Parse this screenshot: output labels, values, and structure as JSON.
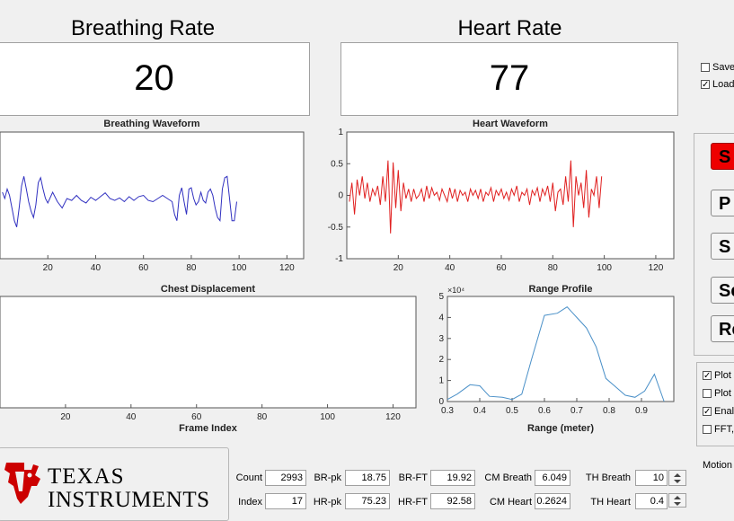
{
  "breathing": {
    "title": "Breathing Rate",
    "value": "20"
  },
  "heart": {
    "title": "Heart Rate",
    "value": "77"
  },
  "save_load": [
    {
      "label": "Save",
      "checked": false
    },
    {
      "label": "Load",
      "checked": true
    }
  ],
  "buttons": [
    "S",
    "P",
    "S",
    "Se",
    "Re"
  ],
  "plot_options": [
    {
      "label": "Plot",
      "checked": true
    },
    {
      "label": "Plot",
      "checked": false
    },
    {
      "label": "Enal",
      "checked": true
    },
    {
      "label": "FFT,",
      "checked": false
    }
  ],
  "motion_label": "Motion",
  "logo": {
    "line1": "TEXAS",
    "line2": "INSTRUMENTS"
  },
  "stats": {
    "count": {
      "label": "Count",
      "value": "2993"
    },
    "index": {
      "label": "Index",
      "value": "17"
    },
    "br_pk": {
      "label": "BR-pk",
      "value": "18.75"
    },
    "hr_pk": {
      "label": "HR-pk",
      "value": "75.23"
    },
    "br_ft": {
      "label": "BR-FT",
      "value": "19.92"
    },
    "hr_ft": {
      "label": "HR-FT",
      "value": "92.58"
    },
    "cm_breath": {
      "label": "CM Breath",
      "value": "6.049"
    },
    "cm_heart": {
      "label": "CM  Heart",
      "value": "0.2624"
    },
    "th_breath": {
      "label": "TH Breath",
      "value": "10"
    },
    "th_heart": {
      "label": "TH  Heart",
      "value": "0.4"
    }
  },
  "chart_data": [
    {
      "type": "line",
      "title": "Breathing Waveform",
      "xticks": [
        "20",
        "40",
        "60",
        "80",
        "100",
        "120"
      ],
      "xlim": [
        0,
        127
      ],
      "ylim": [
        -1,
        1
      ],
      "color": "#3030c0",
      "x": [
        1,
        2,
        3,
        4,
        5,
        6,
        7,
        8,
        9,
        10,
        11,
        12,
        13,
        14,
        15,
        16,
        17,
        18,
        19,
        20,
        22,
        24,
        26,
        28,
        30,
        32,
        34,
        36,
        38,
        40,
        42,
        44,
        46,
        48,
        50,
        52,
        54,
        56,
        58,
        60,
        62,
        64,
        66,
        68,
        70,
        72,
        73,
        74,
        75,
        76,
        77,
        78,
        79,
        80,
        81,
        82,
        83,
        84,
        85,
        86,
        87,
        88,
        89,
        90,
        91,
        92,
        93,
        94,
        95,
        96,
        97,
        98,
        99
      ],
      "y": [
        0.05,
        -0.05,
        0.1,
        0.0,
        -0.2,
        -0.4,
        -0.5,
        -0.2,
        0.15,
        0.3,
        0.1,
        -0.1,
        -0.25,
        -0.35,
        -0.15,
        0.2,
        0.28,
        0.1,
        -0.05,
        -0.12,
        0.05,
        -0.1,
        -0.2,
        -0.05,
        -0.08,
        0.0,
        -0.08,
        -0.12,
        -0.03,
        -0.08,
        -0.02,
        0.04,
        -0.05,
        -0.08,
        -0.04,
        -0.1,
        -0.02,
        -0.08,
        -0.02,
        0.0,
        -0.08,
        -0.1,
        -0.05,
        0.0,
        -0.05,
        -0.1,
        -0.3,
        -0.4,
        0.0,
        0.12,
        -0.1,
        -0.3,
        0.1,
        0.12,
        -0.05,
        -0.15,
        -0.1,
        0.05,
        -0.08,
        -0.12,
        0.05,
        0.1,
        0.0,
        -0.2,
        -0.35,
        -0.4,
        0.1,
        0.28,
        0.3,
        -0.05,
        -0.4,
        -0.4,
        -0.1
      ]
    },
    {
      "type": "line",
      "title": "Heart Waveform",
      "xticks": [
        "20",
        "40",
        "60",
        "80",
        "100",
        "120"
      ],
      "yticks": [
        "1",
        "0.5",
        "0",
        "-0.5",
        "-1"
      ],
      "xlim": [
        0,
        127
      ],
      "ylim": [
        -1,
        1
      ],
      "color": "#e02020",
      "x": [
        1,
        2,
        3,
        4,
        5,
        6,
        7,
        8,
        9,
        10,
        11,
        12,
        13,
        14,
        15,
        16,
        17,
        18,
        19,
        20,
        21,
        22,
        23,
        24,
        25,
        26,
        27,
        28,
        29,
        30,
        31,
        32,
        33,
        34,
        35,
        36,
        37,
        38,
        39,
        40,
        41,
        42,
        43,
        44,
        45,
        46,
        47,
        48,
        49,
        50,
        51,
        52,
        53,
        54,
        55,
        56,
        57,
        58,
        59,
        60,
        61,
        62,
        63,
        64,
        65,
        66,
        67,
        68,
        69,
        70,
        71,
        72,
        73,
        74,
        75,
        76,
        77,
        78,
        79,
        80,
        81,
        82,
        83,
        84,
        85,
        86,
        87,
        88,
        89,
        90,
        91,
        92,
        93,
        94,
        95,
        96,
        97,
        98,
        99
      ],
      "y": [
        -0.1,
        0.2,
        -0.3,
        0.25,
        0.0,
        0.3,
        -0.05,
        0.2,
        -0.1,
        0.1,
        0.0,
        0.15,
        -0.15,
        0.3,
        -0.1,
        0.55,
        -0.6,
        0.52,
        -0.2,
        0.4,
        -0.25,
        0.2,
        -0.05,
        0.1,
        -0.1,
        0.1,
        -0.05,
        0.0,
        0.1,
        -0.1,
        0.15,
        -0.05,
        0.12,
        0.0,
        0.05,
        -0.08,
        0.1,
        0.0,
        -0.1,
        0.12,
        -0.05,
        0.1,
        -0.1,
        0.08,
        0.0,
        0.05,
        -0.1,
        0.1,
        0.0,
        0.08,
        -0.05,
        0.1,
        -0.1,
        0.05,
        0.0,
        0.12,
        -0.1,
        0.08,
        0.0,
        0.1,
        -0.05,
        0.05,
        -0.08,
        0.1,
        0.0,
        0.15,
        -0.1,
        0.05,
        0.0,
        0.1,
        -0.15,
        0.08,
        0.0,
        0.12,
        -0.1,
        0.1,
        0.0,
        0.15,
        -0.1,
        0.2,
        -0.25,
        0.05,
        0.1,
        -0.15,
        0.3,
        -0.1,
        0.55,
        -0.5,
        0.3,
        0.0,
        0.2,
        -0.2,
        0.4,
        -0.35,
        0.1,
        0.0,
        0.3,
        -0.2,
        0.3
      ]
    },
    {
      "type": "line",
      "title": "Chest Displacement",
      "xlabel": "Frame Index",
      "xticks": [
        "20",
        "40",
        "60",
        "80",
        "100",
        "120"
      ],
      "xlim": [
        0,
        127
      ],
      "x": [],
      "y": []
    },
    {
      "type": "line",
      "title": "Range Profile",
      "xlabel": "Range (meter)",
      "y_exponent": "×10⁴",
      "xticks": [
        "0.3",
        "0.4",
        "0.5",
        "0.6",
        "0.7",
        "0.8",
        "0.9"
      ],
      "yticks": [
        "5",
        "4",
        "3",
        "2",
        "1",
        "0"
      ],
      "xlim": [
        0.3,
        1.0
      ],
      "ylim": [
        0,
        5
      ],
      "color": "#4a90c8",
      "x": [
        0.3,
        0.33,
        0.37,
        0.4,
        0.43,
        0.47,
        0.5,
        0.53,
        0.56,
        0.6,
        0.64,
        0.67,
        0.7,
        0.73,
        0.76,
        0.79,
        0.82,
        0.85,
        0.88,
        0.91,
        0.94,
        0.97
      ],
      "y": [
        0.1,
        0.35,
        0.8,
        0.75,
        0.25,
        0.2,
        0.1,
        0.35,
        2.0,
        4.1,
        4.2,
        4.5,
        4.0,
        3.5,
        2.6,
        1.1,
        0.7,
        0.3,
        0.2,
        0.5,
        1.3,
        0.0
      ]
    }
  ]
}
